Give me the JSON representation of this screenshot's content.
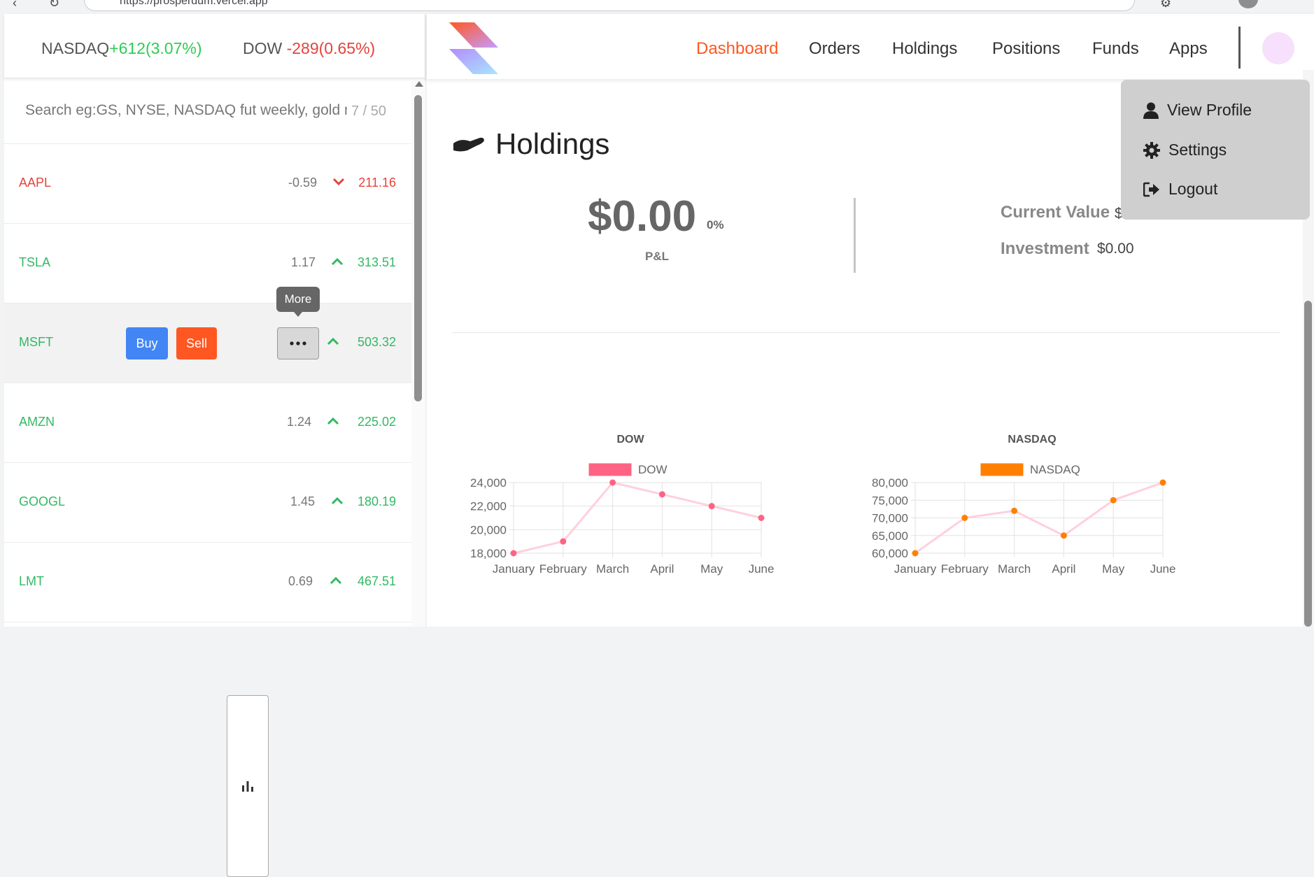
{
  "browser": {
    "url": "https://prosperdum.vercel.app"
  },
  "indices": [
    {
      "name": "NASDAQ",
      "change": "+612(3.07%)",
      "dir": "up"
    },
    {
      "name": "DOW",
      "change": "-289(0.65%)",
      "dir": "down"
    }
  ],
  "search": {
    "placeholder": "Search eg:GS, NYSE, NASDAQ fut weekly, gold mcx",
    "count": "7 / 50"
  },
  "watchlist": [
    {
      "symbol": "AAPL",
      "change": "-0.59",
      "price": "211.16",
      "dir": "down"
    },
    {
      "symbol": "TSLA",
      "change": "1.17",
      "price": "313.51",
      "dir": "up"
    },
    {
      "symbol": "MSFT",
      "change": "",
      "price": "503.32",
      "dir": "up"
    },
    {
      "symbol": "AMZN",
      "change": "1.24",
      "price": "225.02",
      "dir": "up"
    },
    {
      "symbol": "GOOGL",
      "change": "1.45",
      "price": "180.19",
      "dir": "up"
    },
    {
      "symbol": "LMT",
      "change": "0.69",
      "price": "467.51",
      "dir": "up"
    }
  ],
  "row_actions": {
    "buy": "Buy",
    "sell": "Sell",
    "more_tooltip": "More"
  },
  "nav": {
    "dashboard": "Dashboard",
    "orders": "Orders",
    "holdings": "Holdings",
    "positions": "Positions",
    "funds": "Funds",
    "apps": "Apps"
  },
  "holdings": {
    "title": "Holdings",
    "pnl_value": "$0.00",
    "pnl_percent": "0%",
    "pnl_label": "P&L",
    "current_value_label": "Current Value",
    "current_value": "$",
    "investment_label": "Investment",
    "investment_value": "$0.00"
  },
  "profile_menu": {
    "view_profile": "View Profile",
    "settings": "Settings",
    "logout": "Logout"
  },
  "colors": {
    "accent": "#ff5722",
    "up": "#33b864",
    "down": "#e5433d",
    "dow": "#ff6384",
    "nasdaq": "#ff8000"
  },
  "chart_data": [
    {
      "type": "line",
      "title": "DOW",
      "legend": "top",
      "grid": true,
      "categories": [
        "January",
        "February",
        "March",
        "April",
        "May",
        "June"
      ],
      "series": [
        {
          "name": "DOW",
          "values": [
            18000,
            19000,
            24000,
            23000,
            22000,
            21000
          ]
        }
      ],
      "yticks": [
        "24,000",
        "22,000",
        "20,000",
        "18,000"
      ],
      "ylim": [
        18000,
        24000
      ]
    },
    {
      "type": "line",
      "title": "NASDAQ",
      "legend": "top",
      "grid": true,
      "categories": [
        "January",
        "February",
        "March",
        "April",
        "May",
        "June"
      ],
      "series": [
        {
          "name": "NASDAQ",
          "values": [
            60000,
            70000,
            72000,
            65000,
            75000,
            80000
          ]
        }
      ],
      "yticks": [
        "80,000",
        "75,000",
        "70,000",
        "65,000",
        "60,000"
      ],
      "ylim": [
        60000,
        80000
      ]
    }
  ]
}
